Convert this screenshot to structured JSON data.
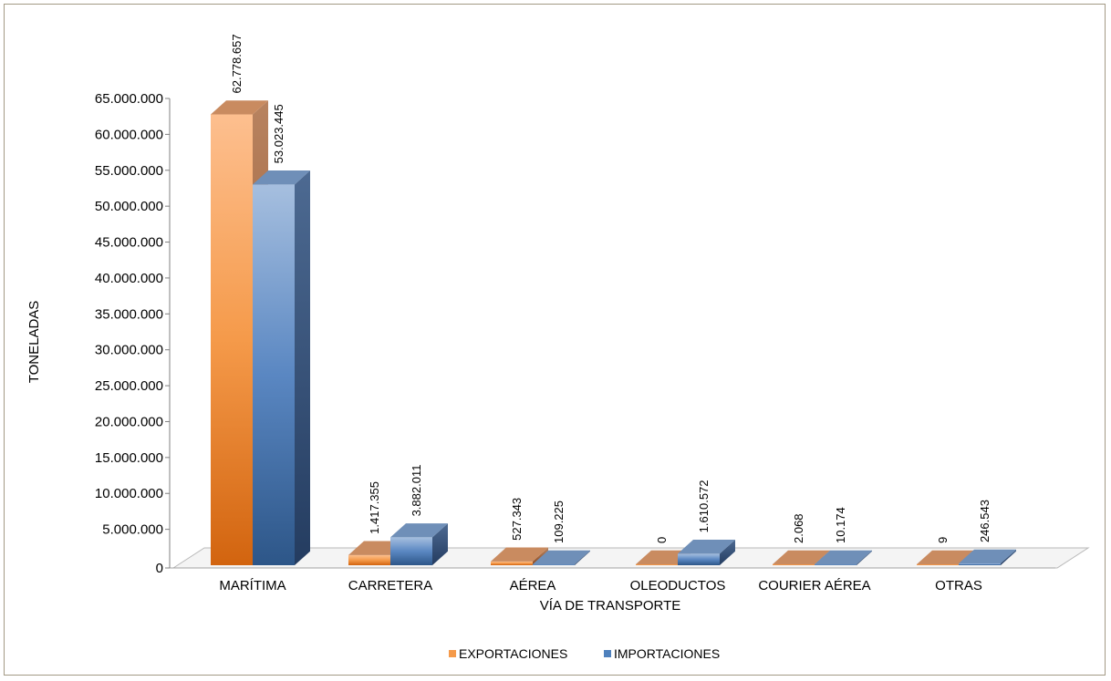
{
  "chart_data": {
    "type": "bar",
    "xlabel": "VÍA DE TRANSPORTE",
    "ylabel": "TONELADAS",
    "ylim": [
      0,
      65000000
    ],
    "ytick_step": 5000000,
    "yticks": [
      "0",
      "5.000.000",
      "10.000.000",
      "15.000.000",
      "20.000.000",
      "25.000.000",
      "30.000.000",
      "35.000.000",
      "40.000.000",
      "45.000.000",
      "50.000.000",
      "55.000.000",
      "60.000.000",
      "65.000.000"
    ],
    "categories": [
      "MARÍTIMA",
      "CARRETERA",
      "AÉREA",
      "OLEODUCTOS",
      "COURIER AÉREA",
      "OTRAS"
    ],
    "series": [
      {
        "name": "EXPORTACIONES",
        "color": "#f59a4a",
        "values": [
          62778657,
          1417355,
          527343,
          0,
          2068,
          9
        ],
        "labels": [
          "62.778.657",
          "1.417.355",
          "527.343",
          "0",
          "2.068",
          "9"
        ]
      },
      {
        "name": "IMPORTACIONES",
        "color": "#4f81bd",
        "values": [
          53023445,
          3882011,
          109225,
          1610572,
          10174,
          246543
        ],
        "labels": [
          "53.023.445",
          "3.882.011",
          "109.225",
          "1.610.572",
          "10.174",
          "246.543"
        ]
      }
    ],
    "legend_position": "bottom",
    "grid": false,
    "style": "3d-clustered-column"
  }
}
